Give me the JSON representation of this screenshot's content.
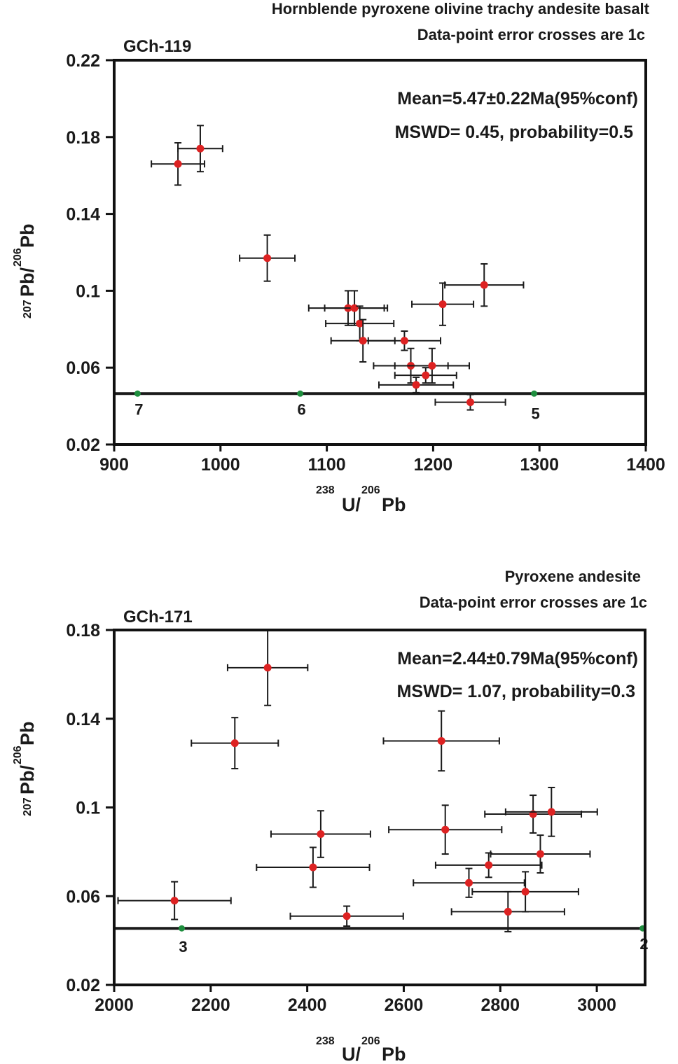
{
  "chart_data": [
    {
      "type": "scatter",
      "title": "Hornblende pyroxene olivine trachy andesite basalt",
      "subtitle": "Data-point error crosses are 1c",
      "sample": "GCh-119",
      "annotation_mean": "Mean=5.47±0.22Ma(95%conf)",
      "annotation_mswd": "MSWD= 0.45, probability=0.5",
      "ylabel_sup1": "207",
      "ylabel_el1": "Pb/",
      "ylabel_sup2": "206",
      "ylabel_el2": "Pb",
      "xlabel_sup1": "238",
      "xlabel_el1": "U/",
      "xlabel_sup2": "206",
      "xlabel_el2": "Pb",
      "xlim": [
        900,
        1400
      ],
      "ylim": [
        0.02,
        0.22
      ],
      "xticks": [
        900,
        1000,
        1100,
        1200,
        1300,
        1400
      ],
      "xtick_labels": [
        "900",
        "1000",
        "1100",
        "1200",
        "1300",
        "1400"
      ],
      "yticks": [
        0.02,
        0.06,
        0.1,
        0.14,
        0.18,
        0.22
      ],
      "ytick_labels": [
        "0.02",
        "0.06",
        "0.1",
        "0.14",
        "0.18",
        "0.22"
      ],
      "concordia_y": 0.0465,
      "concordia_marks": [
        {
          "x": 922,
          "label": "7"
        },
        {
          "x": 1075,
          "label": "6"
        },
        {
          "x": 1295,
          "label": "5"
        }
      ],
      "points": [
        {
          "x": 960,
          "y": 0.166,
          "xerr": 25,
          "yerr": 0.011
        },
        {
          "x": 981,
          "y": 0.174,
          "xerr": 21,
          "yerr": 0.012
        },
        {
          "x": 1044,
          "y": 0.117,
          "xerr": 26,
          "yerr": 0.012
        },
        {
          "x": 1120,
          "y": 0.091,
          "xerr": 37,
          "yerr": 0.009
        },
        {
          "x": 1126,
          "y": 0.091,
          "xerr": 28,
          "yerr": 0.009
        },
        {
          "x": 1131,
          "y": 0.083,
          "xerr": 32,
          "yerr": 0.009
        },
        {
          "x": 1134,
          "y": 0.074,
          "xerr": 30,
          "yerr": 0.011
        },
        {
          "x": 1173,
          "y": 0.074,
          "xerr": 34,
          "yerr": 0.005
        },
        {
          "x": 1179,
          "y": 0.061,
          "xerr": 35,
          "yerr": 0.009
        },
        {
          "x": 1184,
          "y": 0.051,
          "xerr": 35,
          "yerr": 0.004
        },
        {
          "x": 1193,
          "y": 0.056,
          "xerr": 29,
          "yerr": 0.004
        },
        {
          "x": 1199,
          "y": 0.061,
          "xerr": 35,
          "yerr": 0.009
        },
        {
          "x": 1209,
          "y": 0.093,
          "xerr": 29,
          "yerr": 0.011
        },
        {
          "x": 1235,
          "y": 0.042,
          "xerr": 33,
          "yerr": 0.004
        },
        {
          "x": 1248,
          "y": 0.103,
          "xerr": 37,
          "yerr": 0.011
        }
      ]
    },
    {
      "type": "scatter",
      "title": "Pyroxene andesite",
      "subtitle": "Data-point error crosses are 1c",
      "sample": "GCh-171",
      "annotation_mean": "Mean=2.44±0.79Ma(95%conf)",
      "annotation_mswd": "MSWD= 1.07, probability=0.3",
      "ylabel_sup1": "207",
      "ylabel_el1": "Pb/",
      "ylabel_sup2": "206",
      "ylabel_el2": "Pb",
      "xlabel_sup1": "238",
      "xlabel_el1": "U/",
      "xlabel_sup2": "206",
      "xlabel_el2": "Pb",
      "xlim": [
        2000,
        3100
      ],
      "ylim": [
        0.02,
        0.18
      ],
      "xticks": [
        2000,
        2200,
        2400,
        2600,
        2800,
        3000
      ],
      "xtick_labels": [
        "2000",
        "2200",
        "2400",
        "2600",
        "2800",
        "3000"
      ],
      "yticks": [
        0.02,
        0.06,
        0.1,
        0.14,
        0.18
      ],
      "ytick_labels": [
        "0.02",
        "0.06",
        "0.1",
        "0.14",
        "0.18"
      ],
      "concordia_y": 0.0455,
      "concordia_marks": [
        {
          "x": 2140,
          "label": "3"
        },
        {
          "x": 3095,
          "label": "2"
        }
      ],
      "points": [
        {
          "x": 2125,
          "y": 0.058,
          "xerr": 117,
          "yerr": 0.0085
        },
        {
          "x": 2250,
          "y": 0.129,
          "xerr": 90,
          "yerr": 0.0115
        },
        {
          "x": 2318,
          "y": 0.163,
          "xerr": 83,
          "yerr": 0.017
        },
        {
          "x": 2412,
          "y": 0.073,
          "xerr": 117,
          "yerr": 0.009
        },
        {
          "x": 2428,
          "y": 0.088,
          "xerr": 103,
          "yerr": 0.0105
        },
        {
          "x": 2482,
          "y": 0.051,
          "xerr": 117,
          "yerr": 0.0045
        },
        {
          "x": 2678,
          "y": 0.13,
          "xerr": 120,
          "yerr": 0.0135
        },
        {
          "x": 2686,
          "y": 0.09,
          "xerr": 117,
          "yerr": 0.011
        },
        {
          "x": 2735,
          "y": 0.066,
          "xerr": 115,
          "yerr": 0.0065
        },
        {
          "x": 2776,
          "y": 0.074,
          "xerr": 110,
          "yerr": 0.0055
        },
        {
          "x": 2816,
          "y": 0.053,
          "xerr": 117,
          "yerr": 0.009
        },
        {
          "x": 2852,
          "y": 0.062,
          "xerr": 110,
          "yerr": 0.009
        },
        {
          "x": 2868,
          "y": 0.097,
          "xerr": 100,
          "yerr": 0.0085
        },
        {
          "x": 2883,
          "y": 0.079,
          "xerr": 103,
          "yerr": 0.0085
        },
        {
          "x": 2906,
          "y": 0.098,
          "xerr": 95,
          "yerr": 0.011
        }
      ]
    }
  ],
  "colors": {
    "point": "#dd2222",
    "error_bar": "#1a1a1a",
    "concordia": "#1a1a1a",
    "concordia_marker": "#1e8e3e",
    "frame": "#111111"
  }
}
